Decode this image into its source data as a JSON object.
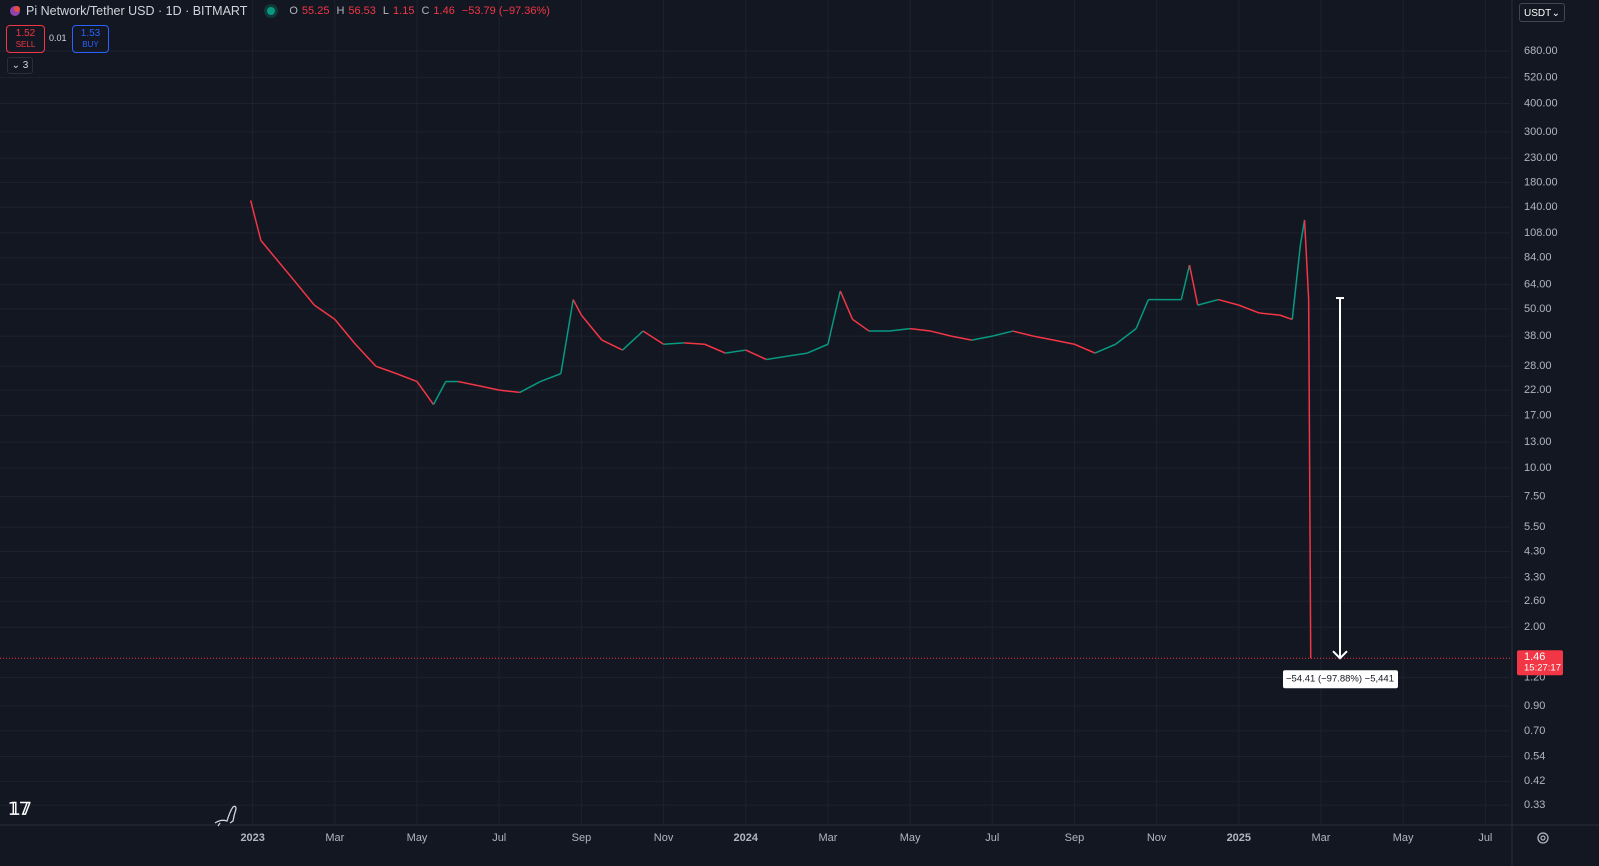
{
  "header": {
    "symbol": "Pi Network/Tether USD · 1D · BITMART",
    "ohlc": [
      {
        "key": "O",
        "value": 55.25
      },
      {
        "key": "H",
        "value": 56.53
      },
      {
        "key": "L",
        "value": 1.15
      },
      {
        "key": "C",
        "value": 1.46
      }
    ],
    "change": "−53.79 (−97.36%)"
  },
  "trade": {
    "sell_price": 1.52,
    "sell_label": "SELL",
    "spread": 0.01,
    "buy_price": 1.53,
    "buy_label": "BUY"
  },
  "indicators_toggle": "3",
  "currency": "USDT",
  "chart_data": {
    "type": "line",
    "log_scale": true,
    "grid": true,
    "up_color": "#089981",
    "down_color": "#f23645",
    "x": [
      -0.05,
      0.2,
      0.5,
      1,
      1.5,
      2,
      2.5,
      3,
      3.5,
      4,
      4.4,
      4.7,
      5,
      5.5,
      6,
      6.5,
      7,
      7.5,
      7.8,
      8,
      8.5,
      9,
      9.5,
      10,
      10.5,
      11,
      11.5,
      12,
      12.5,
      13,
      13.5,
      14,
      14.3,
      14.6,
      15,
      15.5,
      16,
      16.5,
      17,
      17.5,
      18,
      18.5,
      19,
      19.5,
      20,
      20.5,
      21,
      21.5,
      21.8,
      22,
      22.6,
      22.8,
      23,
      23.5,
      24,
      24.5,
      25,
      25.3,
      25.5,
      25.6,
      25.7,
      25.75
    ],
    "values": [
      150,
      100,
      86,
      67,
      52,
      45,
      35,
      28,
      26,
      24,
      19,
      24,
      24,
      23,
      22,
      21.5,
      24,
      26,
      55,
      47,
      36.5,
      33,
      40,
      35,
      35.5,
      35,
      32,
      33,
      30,
      31,
      32,
      35,
      60,
      45,
      40,
      40,
      41,
      40,
      38,
      36.5,
      38,
      40,
      38,
      36.5,
      35,
      32,
      35,
      41,
      55,
      55,
      55,
      78,
      52,
      55,
      52,
      48,
      47,
      45,
      96,
      123,
      55,
      1.46
    ],
    "xlim": [
      -6.15,
      30.6
    ],
    "xticks": [
      {
        "value": 0,
        "label": "2023"
      },
      {
        "value": 2,
        "label": "Mar"
      },
      {
        "value": 4,
        "label": "May"
      },
      {
        "value": 6,
        "label": "Jul"
      },
      {
        "value": 8,
        "label": "Sep"
      },
      {
        "value": 10,
        "label": "Nov"
      },
      {
        "value": 12,
        "label": "2024"
      },
      {
        "value": 14,
        "label": "Mar"
      },
      {
        "value": 16,
        "label": "May"
      },
      {
        "value": 18,
        "label": "Jul"
      },
      {
        "value": 20,
        "label": "Sep"
      },
      {
        "value": 22,
        "label": "Nov"
      },
      {
        "value": 24,
        "label": "2025"
      },
      {
        "value": 26,
        "label": "Mar"
      },
      {
        "value": 28,
        "label": "May"
      },
      {
        "value": 30,
        "label": "Jul"
      }
    ],
    "ylim": [
      0.27,
      1140
    ],
    "yticks": [
      {
        "value": 680,
        "label": "680.00"
      },
      {
        "value": 520,
        "label": "520.00"
      },
      {
        "value": 400,
        "label": "400.00"
      },
      {
        "value": 300,
        "label": "300.00"
      },
      {
        "value": 230,
        "label": "230.00"
      },
      {
        "value": 180,
        "label": "180.00"
      },
      {
        "value": 140,
        "label": "140.00"
      },
      {
        "value": 108,
        "label": "108.00"
      },
      {
        "value": 84,
        "label": "84.00"
      },
      {
        "value": 64,
        "label": "64.00"
      },
      {
        "value": 50,
        "label": "50.00"
      },
      {
        "value": 38,
        "label": "38.00"
      },
      {
        "value": 28,
        "label": "28.00"
      },
      {
        "value": 22,
        "label": "22.00"
      },
      {
        "value": 17,
        "label": "17.00"
      },
      {
        "value": 13,
        "label": "13.00"
      },
      {
        "value": 10,
        "label": "10.00"
      },
      {
        "value": 7.5,
        "label": "7.50"
      },
      {
        "value": 5.5,
        "label": "5.50"
      },
      {
        "value": 4.3,
        "label": "4.30"
      },
      {
        "value": 3.3,
        "label": "3.30"
      },
      {
        "value": 2.6,
        "label": "2.60"
      },
      {
        "value": 2,
        "label": "2.00"
      },
      {
        "value": 1.2,
        "label": "1.20"
      },
      {
        "value": 0.9,
        "label": "0.90"
      },
      {
        "value": 0.7,
        "label": "0.70"
      },
      {
        "value": 0.54,
        "label": "0.54"
      },
      {
        "value": 0.42,
        "label": "0.42"
      },
      {
        "value": 0.33,
        "label": "0.33"
      }
    ],
    "last_price": 1.46,
    "countdown": "15:27:17",
    "price_marker_color": "#f23645",
    "measure": {
      "from": 55.87,
      "to": 1.46,
      "label": "−54.41 (−97.88%) −5,441"
    }
  }
}
